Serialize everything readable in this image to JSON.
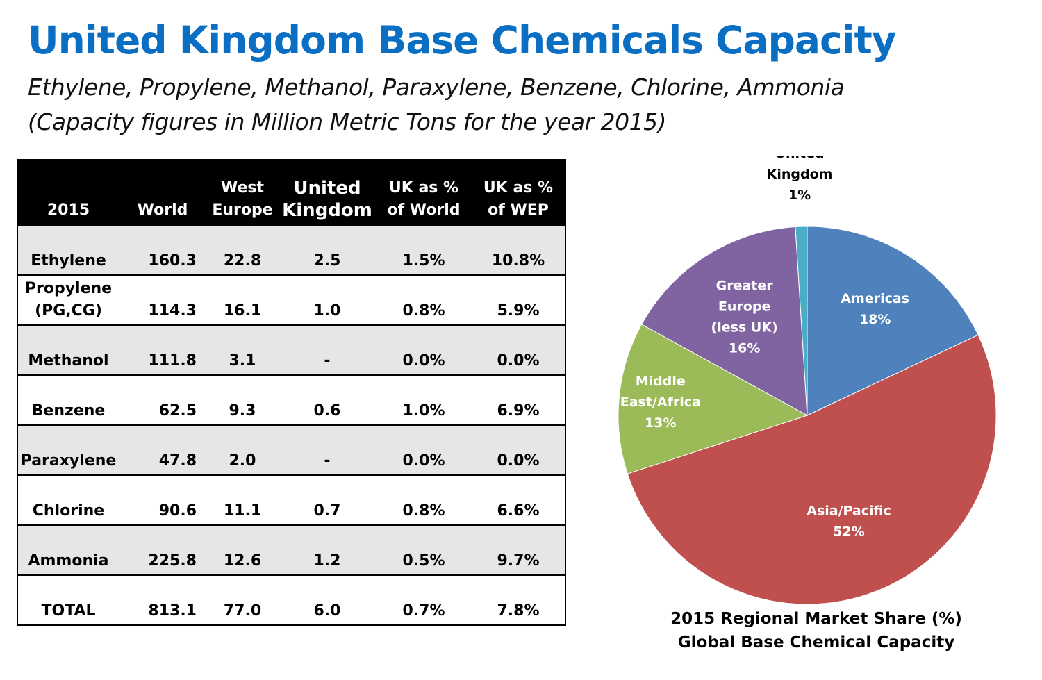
{
  "header": {
    "title": "United Kingdom Base Chemicals Capacity",
    "subtitle_line1": "Ethylene, Propylene, Methanol, Paraxylene, Benzene, Chlorine, Ammonia",
    "subtitle_line2": "(Capacity figures in Million Metric Tons for the year 2015)"
  },
  "table": {
    "headers": {
      "year": "2015",
      "world": "World",
      "west_europe_1": "West",
      "west_europe_2": "Europe",
      "uk_1": "United",
      "uk_2": "Kingdom",
      "pct_world_1": "UK as %",
      "pct_world_2": "of World",
      "pct_wep_1": "UK as %",
      "pct_wep_2": "of WEP"
    },
    "rows": [
      {
        "name": "Ethylene",
        "name2": "",
        "world": "160.3",
        "west_europe": "22.8",
        "uk": "2.5",
        "pct_world": "1.5%",
        "pct_wep": "10.8%"
      },
      {
        "name": "Propylene",
        "name2": "(PG,CG)",
        "world": "114.3",
        "west_europe": "16.1",
        "uk": "1.0",
        "pct_world": "0.8%",
        "pct_wep": "5.9%"
      },
      {
        "name": "Methanol",
        "name2": "",
        "world": "111.8",
        "west_europe": "3.1",
        "uk": "-",
        "pct_world": "0.0%",
        "pct_wep": "0.0%"
      },
      {
        "name": "Benzene",
        "name2": "",
        "world": "62.5",
        "west_europe": "9.3",
        "uk": "0.6",
        "pct_world": "1.0%",
        "pct_wep": "6.9%"
      },
      {
        "name": "Paraxylene",
        "name2": "",
        "world": "47.8",
        "west_europe": "2.0",
        "uk": "-",
        "pct_world": "0.0%",
        "pct_wep": "0.0%"
      },
      {
        "name": "Chlorine",
        "name2": "",
        "world": "90.6",
        "west_europe": "11.1",
        "uk": "0.7",
        "pct_world": "0.8%",
        "pct_wep": "6.6%"
      },
      {
        "name": "Ammonia",
        "name2": "",
        "world": "225.8",
        "west_europe": "12.6",
        "uk": "1.2",
        "pct_world": "0.5%",
        "pct_wep": "9.7%"
      },
      {
        "name": "TOTAL",
        "name2": "",
        "world": "813.1",
        "west_europe": "77.0",
        "uk": "6.0",
        "pct_world": "0.7%",
        "pct_wep": "7.8%"
      }
    ]
  },
  "chart_data": {
    "type": "pie",
    "title": "2015 Regional Market Share (%)",
    "subtitle": "Global Base Chemical Capacity",
    "slices": [
      {
        "label": [
          "Americas",
          "18%"
        ],
        "value": 18,
        "color": "#4f81bd",
        "text_color": "#ffffff"
      },
      {
        "label": [
          "Asia/Pacific",
          "52%"
        ],
        "value": 52,
        "color": "#c0504d",
        "text_color": "#ffffff"
      },
      {
        "label": [
          "Middle",
          "East/Africa",
          "13%"
        ],
        "value": 13,
        "color": "#9bbb59",
        "text_color": "#ffffff"
      },
      {
        "label": [
          "Greater",
          "Europe",
          "(less UK)",
          "16%"
        ],
        "value": 16,
        "color": "#8064a2",
        "text_color": "#ffffff"
      },
      {
        "label": [
          "United",
          "Kingdom",
          "1%"
        ],
        "value": 1,
        "color": "#4bacc6",
        "text_color": "#000000"
      }
    ]
  }
}
